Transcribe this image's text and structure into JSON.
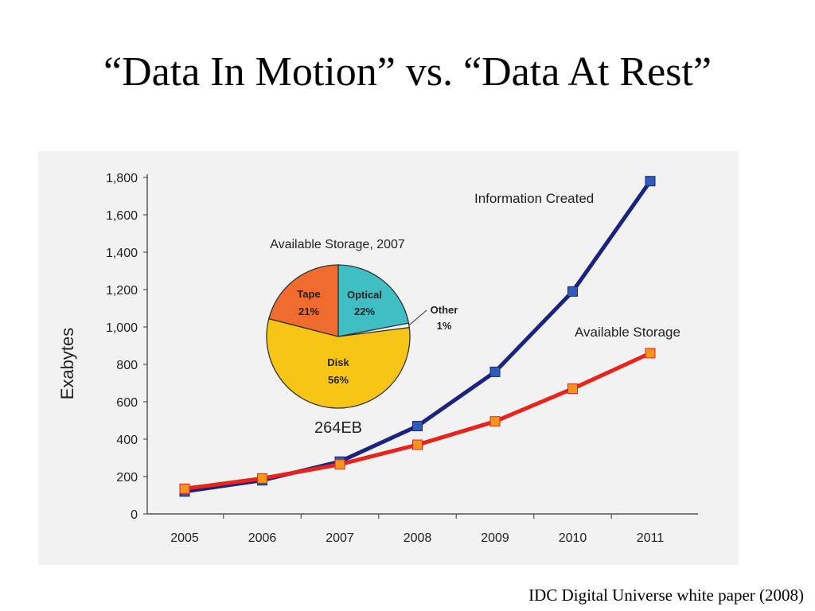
{
  "slide": {
    "title": "“Data In Motion” vs. “Data At Rest”",
    "caption": "IDC Digital Universe white paper (2008)"
  },
  "colors": {
    "information_created": "#1a237e",
    "available_storage": "#e8231c",
    "available_storage_marker": "#f7941d",
    "info_marker": "#2e5cb8",
    "pie_tape": "#ef6b2e",
    "pie_optical": "#3fbfc4",
    "pie_disk": "#f7c515",
    "pie_other": "#f2f2f2",
    "panel": "#f2f2f2"
  },
  "chart_data": [
    {
      "type": "line",
      "ylabel": "Exabytes",
      "xlabel": "",
      "categories": [
        "2005",
        "2006",
        "2007",
        "2008",
        "2009",
        "2010",
        "2011"
      ],
      "ylim": [
        0,
        1800
      ],
      "yticks": [
        0,
        200,
        400,
        600,
        800,
        1000,
        1200,
        1400,
        1600,
        1800
      ],
      "ytick_labels": [
        "0",
        "200",
        "400",
        "600",
        "800",
        "1,000",
        "1,200",
        "1,400",
        "1,600",
        "1,800"
      ],
      "grid": false,
      "series": [
        {
          "name": "Information Created",
          "values": [
            120,
            180,
            280,
            470,
            760,
            1190,
            1780
          ]
        },
        {
          "name": "Available Storage",
          "values": [
            135,
            190,
            265,
            370,
            495,
            670,
            860
          ]
        }
      ]
    },
    {
      "type": "pie",
      "title": "Available Storage, 2007",
      "total_label": "264EB",
      "slices": [
        {
          "name": "Optical",
          "value_label": "22%",
          "value": 22
        },
        {
          "name": "Other",
          "value_label": "1%",
          "value": 1
        },
        {
          "name": "Disk",
          "value_label": "56%",
          "value": 56
        },
        {
          "name": "Tape",
          "value_label": "21%",
          "value": 21
        }
      ]
    }
  ]
}
